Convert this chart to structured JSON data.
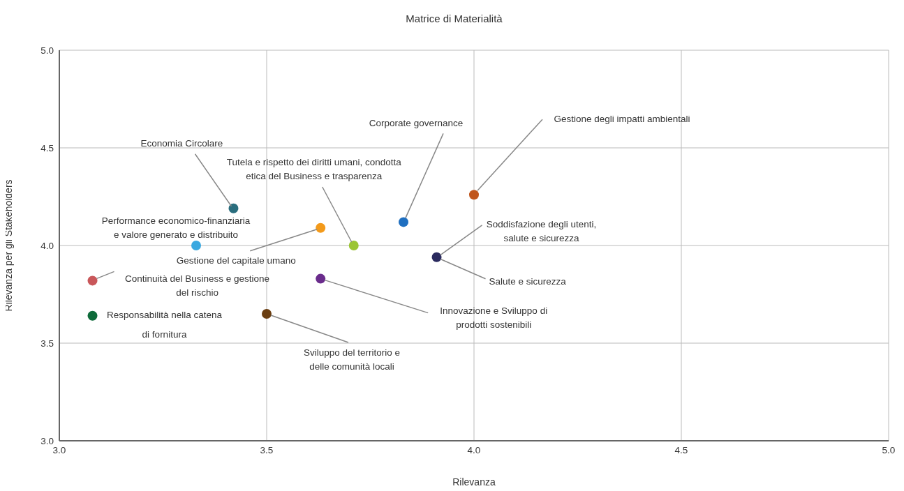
{
  "chart_data": {
    "type": "scatter",
    "title": "Matrice di Materialità",
    "xlabel": "Rilevanza",
    "ylabel": "Rilevanza per gli Stakeholders",
    "xlim": [
      3,
      5
    ],
    "ylim": [
      3,
      5
    ],
    "xticks": [
      {
        "value": 3,
        "label": "3.0"
      },
      {
        "value": 3.5,
        "label": "3.5"
      },
      {
        "value": 4,
        "label": "4.0"
      },
      {
        "value": 4.5,
        "label": "4.5"
      },
      {
        "value": 5,
        "label": "5.0"
      }
    ],
    "yticks": [
      {
        "value": 3,
        "label": "3.0"
      },
      {
        "value": 3.5,
        "label": "3.5"
      },
      {
        "value": 4,
        "label": "4.0"
      },
      {
        "value": 4.5,
        "label": "4.5"
      },
      {
        "value": 5,
        "label": "5.0"
      }
    ],
    "grid": true,
    "marker": "circle",
    "series": [
      {
        "name": "Economia Circolare",
        "color": "#2a6e7e",
        "x": [
          3.42
        ],
        "values": [
          4.19
        ]
      },
      {
        "name": "Performance economico-finanziaria e valore generato e distribuito",
        "color": "#3aa8e0",
        "x": [
          3.33
        ],
        "values": [
          4.0
        ]
      },
      {
        "name": "Continuità del Business e gestione del rischio",
        "color": "#c9575a",
        "x": [
          3.08
        ],
        "values": [
          3.82
        ]
      },
      {
        "name": "Responsabilità nella catena di fornitura",
        "color": "#0e6b3a",
        "x": [
          3.08
        ],
        "values": [
          3.64
        ]
      },
      {
        "name": "Gestione del capitale umano",
        "color": "#f39a1b",
        "x": [
          3.63
        ],
        "values": [
          4.09
        ]
      },
      {
        "name": "Tutela e rispetto dei diritti umani, condotta etica del Business e trasparenza",
        "color": "#9bc534",
        "x": [
          3.71
        ],
        "values": [
          4.0
        ]
      },
      {
        "name": "Innovazione e Sviluppo di prodotti sostenibili",
        "color": "#6a2c8c",
        "x": [
          3.63
        ],
        "values": [
          3.83
        ]
      },
      {
        "name": "Sviluppo del territorio e delle comunità locali",
        "color": "#6b3f12",
        "x": [
          3.5
        ],
        "values": [
          3.65
        ]
      },
      {
        "name": "Corporate governance",
        "color": "#1f6fc0",
        "x": [
          3.83
        ],
        "values": [
          4.12
        ]
      },
      {
        "name": "Gestione degli impatti ambientali",
        "color": "#c0561c",
        "x": [
          4.0
        ],
        "values": [
          4.26
        ]
      },
      {
        "name": "Soddisfazione degli utenti, salute e sicurezza",
        "color": "#2a2a5e",
        "x": [
          3.91
        ],
        "values": [
          3.94
        ]
      }
    ],
    "annotations": [
      {
        "text": "Salute e sicurezza",
        "x": 3.91,
        "y": 3.94
      }
    ]
  }
}
